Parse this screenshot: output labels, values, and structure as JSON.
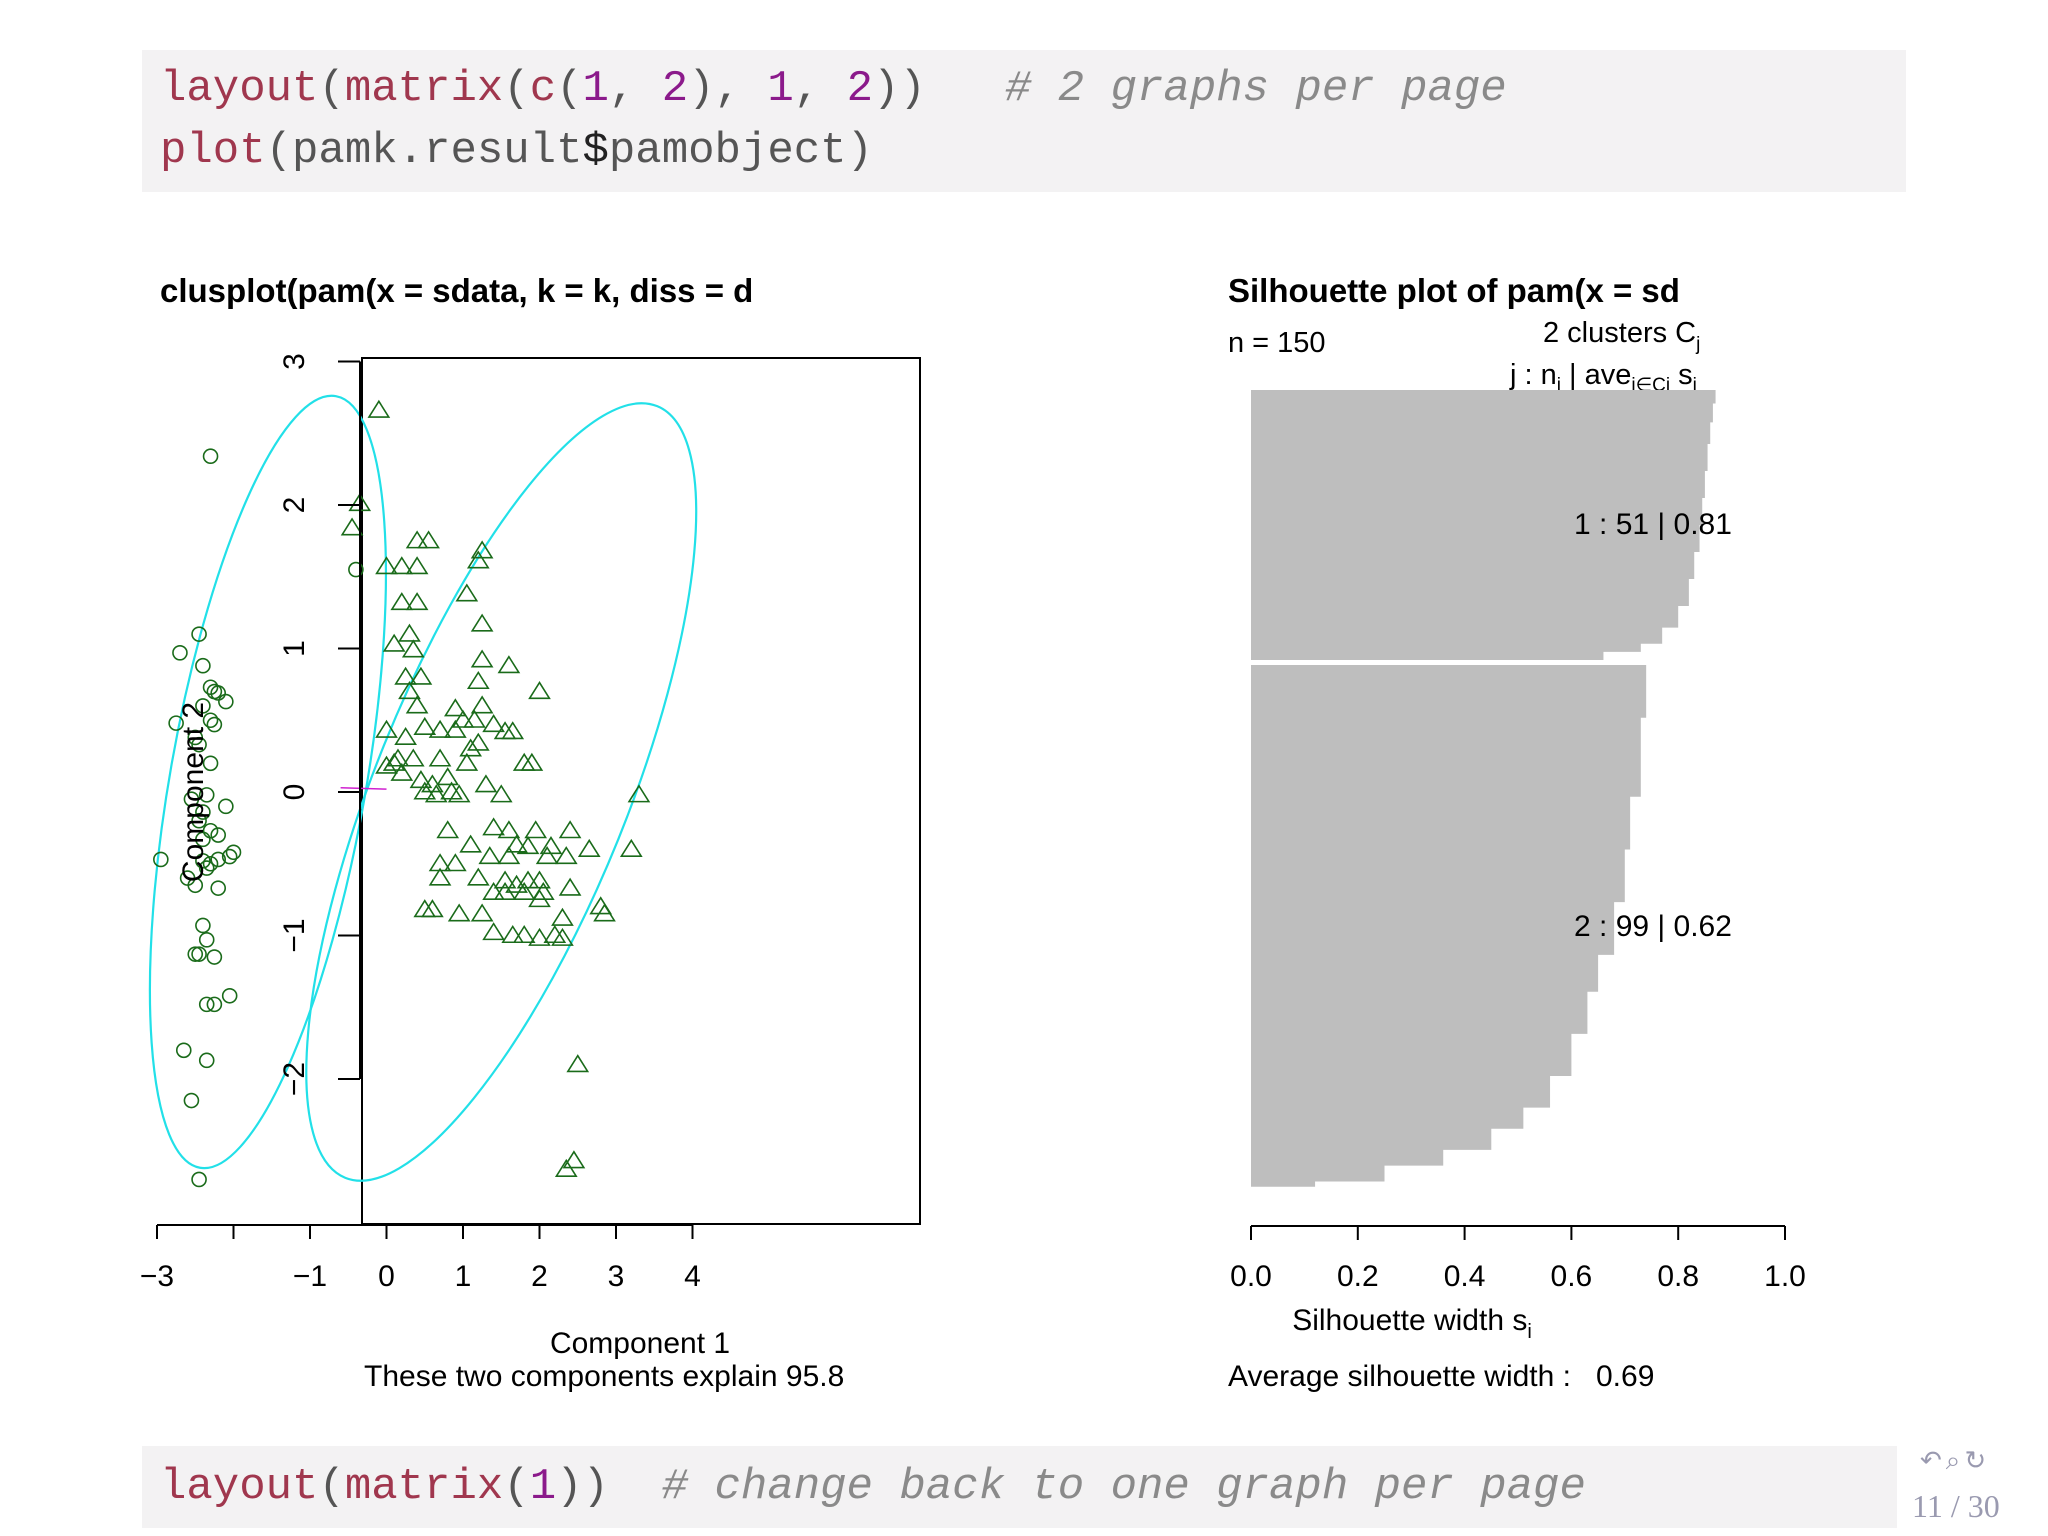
{
  "code_top": {
    "line1": {
      "fn1": "layout",
      "p1": "(",
      "fn2": "matrix",
      "p2": "(",
      "fn3": "c",
      "p3": "(",
      "n1": "1",
      "p4": ", ",
      "n2": "2",
      "p5": "), ",
      "n3": "1",
      "p6": ", ",
      "n4": "2",
      "p7": "))",
      "comment": "# 2 graphs per page"
    },
    "line2": {
      "fn1": "plot",
      "p1": "(pamk.result",
      "dollar": "$",
      "p2": "pamobject)"
    }
  },
  "code_bottom": {
    "fn1": "layout",
    "p1": "(",
    "fn2": "matrix",
    "p2": "(",
    "n1": "1",
    "p3": "))",
    "comment": "# change back to one graph per page"
  },
  "nav": {
    "icons": "↶⌕↻",
    "page": "11 / 30"
  },
  "chart_data": [
    {
      "type": "scatter",
      "title": "clusplot(pam(x = sdata, k = k, diss = d",
      "xlabel": "Component 1",
      "ylabel": "Component 2",
      "subtitle": "These two components explain 95.8",
      "xlim": [
        -3.3,
        4.1
      ],
      "ylim": [
        -2.9,
        3.0
      ],
      "x_ticks": [
        -3,
        -2,
        -1,
        0,
        1,
        2,
        3,
        4
      ],
      "x_tick_labels": [
        "−3",
        "",
        "−1",
        "0",
        "1",
        "2",
        "3",
        "4"
      ],
      "y_ticks": [
        -2,
        -1,
        0,
        1,
        2,
        3
      ],
      "y_tick_labels": [
        "−2",
        "−1",
        "0",
        "1",
        "2",
        "3"
      ],
      "colors": {
        "points": "#1a6b1a",
        "ellipse": "#22e0e8",
        "link": "#d020d0",
        "axis": "#000000"
      },
      "series": [
        {
          "marker": "circle",
          "points": [
            [
              -2.3,
              2.34
            ],
            [
              -0.4,
              1.55
            ],
            [
              -2.45,
              1.1
            ],
            [
              -2.7,
              0.97
            ],
            [
              -2.4,
              0.88
            ],
            [
              -2.3,
              0.73
            ],
            [
              -2.25,
              0.7
            ],
            [
              -2.2,
              0.69
            ],
            [
              -2.1,
              0.63
            ],
            [
              -2.4,
              0.6
            ],
            [
              -2.75,
              0.48
            ],
            [
              -2.3,
              0.5
            ],
            [
              -2.25,
              0.47
            ],
            [
              -2.5,
              0.38
            ],
            [
              -2.45,
              0.33
            ],
            [
              -2.3,
              0.2
            ],
            [
              -2.55,
              -0.05
            ],
            [
              -2.35,
              -0.02
            ],
            [
              -2.4,
              -0.14
            ],
            [
              -2.1,
              -0.1
            ],
            [
              -2.45,
              -0.2
            ],
            [
              -2.3,
              -0.27
            ],
            [
              -2.4,
              -0.33
            ],
            [
              -2.2,
              -0.3
            ],
            [
              -2.0,
              -0.42
            ],
            [
              -2.05,
              -0.45
            ],
            [
              -2.2,
              -0.47
            ],
            [
              -2.3,
              -0.5
            ],
            [
              -2.4,
              -0.48
            ],
            [
              -2.35,
              -0.53
            ],
            [
              -2.95,
              -0.47
            ],
            [
              -2.6,
              -0.6
            ],
            [
              -2.5,
              -0.65
            ],
            [
              -2.2,
              -0.67
            ],
            [
              -2.4,
              -0.93
            ],
            [
              -2.35,
              -1.03
            ],
            [
              -2.5,
              -1.13
            ],
            [
              -2.45,
              -1.13
            ],
            [
              -2.25,
              -1.15
            ],
            [
              -2.05,
              -1.42
            ],
            [
              -2.35,
              -1.48
            ],
            [
              -2.25,
              -1.48
            ],
            [
              -2.65,
              -1.8
            ],
            [
              -2.35,
              -1.87
            ],
            [
              -2.55,
              -2.15
            ],
            [
              -2.45,
              -2.7
            ]
          ]
        },
        {
          "marker": "triangle",
          "points": [
            [
              -0.1,
              2.66
            ],
            [
              -0.35,
              2.01
            ],
            [
              -0.45,
              1.84
            ],
            [
              0.4,
              1.75
            ],
            [
              0.55,
              1.75
            ],
            [
              1.25,
              1.68
            ],
            [
              1.2,
              1.61
            ],
            [
              0.0,
              1.57
            ],
            [
              0.2,
              1.57
            ],
            [
              0.4,
              1.57
            ],
            [
              0.2,
              1.32
            ],
            [
              0.4,
              1.32
            ],
            [
              1.05,
              1.38
            ],
            [
              1.25,
              1.17
            ],
            [
              0.3,
              1.1
            ],
            [
              0.1,
              1.03
            ],
            [
              0.35,
              0.99
            ],
            [
              1.25,
              0.92
            ],
            [
              1.6,
              0.88
            ],
            [
              0.25,
              0.8
            ],
            [
              0.45,
              0.8
            ],
            [
              0.3,
              0.7
            ],
            [
              1.2,
              0.77
            ],
            [
              2.0,
              0.7
            ],
            [
              0.4,
              0.6
            ],
            [
              1.25,
              0.6
            ],
            [
              0.9,
              0.58
            ],
            [
              1.15,
              0.5
            ],
            [
              1.0,
              0.5
            ],
            [
              1.4,
              0.47
            ],
            [
              1.55,
              0.42
            ],
            [
              1.65,
              0.42
            ],
            [
              0.0,
              0.43
            ],
            [
              0.5,
              0.45
            ],
            [
              0.7,
              0.43
            ],
            [
              0.9,
              0.43
            ],
            [
              0.25,
              0.38
            ],
            [
              1.2,
              0.34
            ],
            [
              1.1,
              0.3
            ],
            [
              0.15,
              0.23
            ],
            [
              0.35,
              0.23
            ],
            [
              0.7,
              0.23
            ],
            [
              1.05,
              0.2
            ],
            [
              1.8,
              0.2
            ],
            [
              1.9,
              0.2
            ],
            [
              0.0,
              0.18
            ],
            [
              0.1,
              0.2
            ],
            [
              0.2,
              0.13
            ],
            [
              0.45,
              0.08
            ],
            [
              0.6,
              0.05
            ],
            [
              0.8,
              0.1
            ],
            [
              0.5,
              0.0
            ],
            [
              0.65,
              -0.02
            ],
            [
              0.85,
              0.0
            ],
            [
              0.95,
              -0.02
            ],
            [
              1.3,
              0.05
            ],
            [
              1.5,
              -0.02
            ],
            [
              3.3,
              -0.02
            ],
            [
              1.4,
              -0.25
            ],
            [
              1.6,
              -0.27
            ],
            [
              1.95,
              -0.27
            ],
            [
              2.4,
              -0.27
            ],
            [
              0.8,
              -0.27
            ],
            [
              1.1,
              -0.37
            ],
            [
              1.7,
              -0.37
            ],
            [
              1.85,
              -0.38
            ],
            [
              2.15,
              -0.38
            ],
            [
              2.65,
              -0.4
            ],
            [
              3.2,
              -0.4
            ],
            [
              0.7,
              -0.5
            ],
            [
              0.9,
              -0.5
            ],
            [
              1.35,
              -0.45
            ],
            [
              1.6,
              -0.45
            ],
            [
              2.1,
              -0.45
            ],
            [
              2.35,
              -0.45
            ],
            [
              0.7,
              -0.6
            ],
            [
              1.2,
              -0.6
            ],
            [
              1.55,
              -0.62
            ],
            [
              1.85,
              -0.62
            ],
            [
              2.0,
              -0.62
            ],
            [
              1.7,
              -0.65
            ],
            [
              1.4,
              -0.7
            ],
            [
              1.55,
              -0.7
            ],
            [
              1.8,
              -0.7
            ],
            [
              2.05,
              -0.7
            ],
            [
              2.4,
              -0.67
            ],
            [
              2.0,
              -0.75
            ],
            [
              0.6,
              -0.82
            ],
            [
              0.5,
              -0.82
            ],
            [
              0.95,
              -0.85
            ],
            [
              1.25,
              -0.85
            ],
            [
              2.3,
              -0.88
            ],
            [
              2.8,
              -0.8
            ],
            [
              2.85,
              -0.85
            ],
            [
              1.4,
              -0.98
            ],
            [
              1.65,
              -1.0
            ],
            [
              1.8,
              -1.0
            ],
            [
              2.0,
              -1.02
            ],
            [
              2.2,
              -1.0
            ],
            [
              2.3,
              -1.02
            ],
            [
              2.5,
              -1.9
            ],
            [
              2.45,
              -2.57
            ],
            [
              2.35,
              -2.63
            ]
          ]
        }
      ],
      "ellipses": [
        {
          "center": [
            -1.55,
            0.07
          ],
          "semi_axes": [
            1.28,
            2.73
          ],
          "angle_deg": 10
        },
        {
          "center": [
            1.5,
            0.0
          ],
          "semi_axes": [
            1.65,
            2.9
          ],
          "angle_deg": 22
        }
      ],
      "link": [
        [
          -0.6,
          0.03
        ],
        [
          0.0,
          0.02
        ]
      ]
    },
    {
      "type": "bar",
      "orientation": "horizontal",
      "title": "Silhouette plot of pam(x = sd",
      "n_label": "n = 150",
      "header_line1": "2  clusters  C",
      "header_line1_sub": "j",
      "header_line2": "j :  n",
      "header_line2_sub": "j",
      "header_line2_mid": " | ave",
      "header_line2_sub2": "i∈Cj",
      "header_line2_end": "  s",
      "header_line2_sub3": "i",
      "xlabel": "Silhouette width s",
      "xlabel_sub": "i",
      "xlim": [
        0.0,
        1.0
      ],
      "x_ticks": [
        0.0,
        0.2,
        0.4,
        0.6,
        0.8,
        1.0
      ],
      "x_tick_labels": [
        "0.0",
        "0.2",
        "0.4",
        "0.6",
        "0.8",
        "1.0"
      ],
      "average_label": "Average silhouette width :   0.69",
      "bar_color": "#bebebe",
      "clusters": [
        {
          "label": "1 :   51  |  0.81",
          "n": 51,
          "average": 0.81,
          "profile": [
            [
              0,
              0.87
            ],
            [
              0.05,
              0.865
            ],
            [
              0.12,
              0.86
            ],
            [
              0.2,
              0.855
            ],
            [
              0.3,
              0.85
            ],
            [
              0.4,
              0.845
            ],
            [
              0.5,
              0.84
            ],
            [
              0.6,
              0.83
            ],
            [
              0.7,
              0.82
            ],
            [
              0.8,
              0.8
            ],
            [
              0.88,
              0.77
            ],
            [
              0.94,
              0.73
            ],
            [
              0.97,
              0.66
            ],
            [
              1.0,
              0.15
            ]
          ]
        },
        {
          "label": "2 :   99  |  0.62",
          "n": 99,
          "average": 0.62,
          "profile": [
            [
              0,
              0.74
            ],
            [
              0.1,
              0.73
            ],
            [
              0.25,
              0.71
            ],
            [
              0.35,
              0.7
            ],
            [
              0.45,
              0.68
            ],
            [
              0.55,
              0.65
            ],
            [
              0.62,
              0.63
            ],
            [
              0.7,
              0.6
            ],
            [
              0.78,
              0.56
            ],
            [
              0.84,
              0.51
            ],
            [
              0.88,
              0.45
            ],
            [
              0.92,
              0.36
            ],
            [
              0.95,
              0.25
            ],
            [
              0.98,
              0.12
            ],
            [
              0.99,
              0.0
            ],
            [
              1.0,
              -0.05
            ]
          ]
        }
      ]
    }
  ]
}
